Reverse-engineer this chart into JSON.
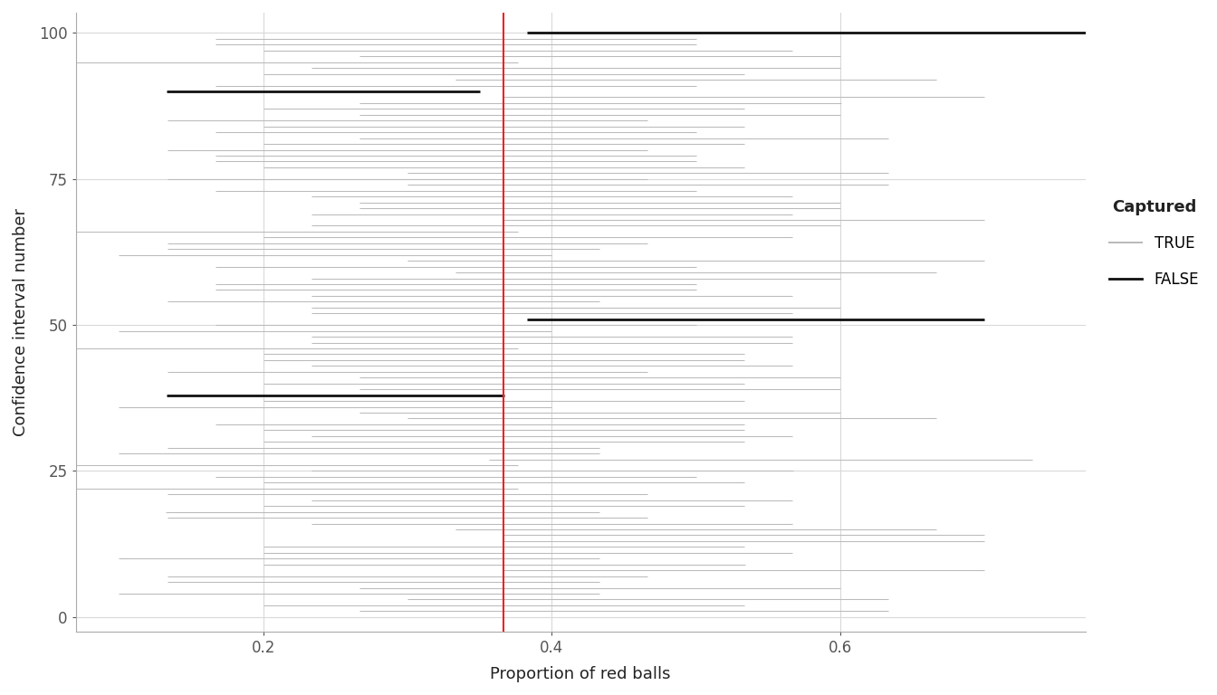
{
  "true_p": 0.3667,
  "red_line_color": "#EE2222",
  "true_color": "#BBBBBB",
  "false_color": "#111111",
  "background_color": "#FFFFFF",
  "panel_background": "#FFFFFF",
  "grid_color": "#D9D9D9",
  "xlabel": "Proportion of red balls",
  "ylabel": "Confidence interval number",
  "xlim": [
    0.07,
    0.77
  ],
  "ylim": [
    -2.5,
    103.5
  ],
  "xticks": [
    0.2,
    0.4,
    0.6
  ],
  "yticks": [
    0,
    25,
    50,
    75,
    100
  ],
  "legend_title": "Captured",
  "true_label": "TRUE",
  "false_label": "FALSE",
  "true_lw": 0.75,
  "false_lw": 2.0,
  "figsize": [
    13.44,
    7.68
  ],
  "dpi": 100,
  "n_intervals": 100,
  "false_intervals": [
    {
      "y": 90,
      "lower": 0.133,
      "upper": 0.35
    },
    {
      "y": 38,
      "lower": 0.133,
      "upper": 0.367
    },
    {
      "y": 100,
      "lower": 0.383,
      "upper": 0.967
    },
    {
      "y": 51,
      "lower": 0.383,
      "upper": 0.7
    }
  ],
  "seed": 12345
}
